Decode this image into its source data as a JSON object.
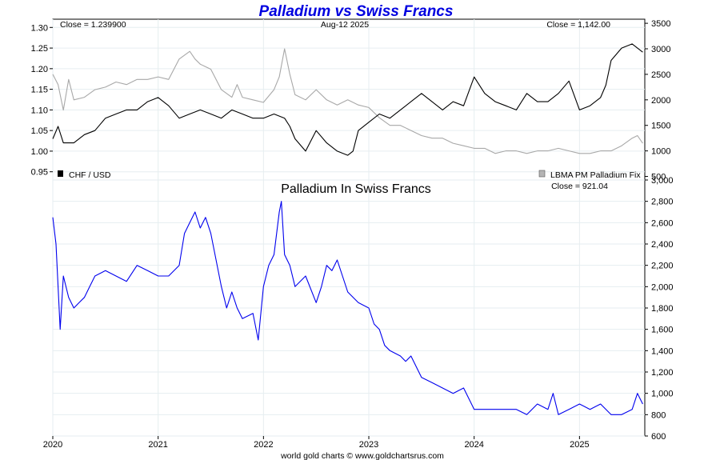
{
  "chart_data": [
    {
      "type": "line",
      "title": "Palladium vs Swiss Francs",
      "date_label": "Aug-12  2025",
      "left_readout": "Close = 1.239900",
      "right_readout": "Close = 1,142.00",
      "left_axis": {
        "ylim": [
          0.93,
          1.32
        ],
        "ticks": [
          "0.95",
          "1.00",
          "1.05",
          "1.10",
          "1.15",
          "1.20",
          "1.25",
          "1.30"
        ]
      },
      "right_axis": {
        "ylim": [
          430,
          3580
        ],
        "ticks": [
          "500",
          "1000",
          "1500",
          "2000",
          "2500",
          "3000",
          "3500"
        ]
      },
      "series": [
        {
          "name": "CHF / USD",
          "axis": "left",
          "color": "#000000",
          "x": [
            2020.0,
            2020.05,
            2020.1,
            2020.2,
            2020.3,
            2020.4,
            2020.5,
            2020.6,
            2020.7,
            2020.8,
            2020.9,
            2021.0,
            2021.1,
            2021.2,
            2021.3,
            2021.4,
            2021.5,
            2021.6,
            2021.7,
            2021.8,
            2021.9,
            2022.0,
            2022.1,
            2022.2,
            2022.25,
            2022.3,
            2022.4,
            2022.5,
            2022.6,
            2022.7,
            2022.8,
            2022.85,
            2022.9,
            2023.0,
            2023.1,
            2023.2,
            2023.3,
            2023.4,
            2023.5,
            2023.6,
            2023.7,
            2023.8,
            2023.9,
            2024.0,
            2024.1,
            2024.2,
            2024.3,
            2024.4,
            2024.5,
            2024.6,
            2024.7,
            2024.8,
            2024.9,
            2025.0,
            2025.1,
            2025.2,
            2025.25,
            2025.3,
            2025.4,
            2025.5,
            2025.6
          ],
          "y": [
            1.03,
            1.06,
            1.02,
            1.02,
            1.04,
            1.05,
            1.08,
            1.09,
            1.1,
            1.1,
            1.12,
            1.13,
            1.11,
            1.08,
            1.09,
            1.1,
            1.09,
            1.08,
            1.1,
            1.09,
            1.08,
            1.08,
            1.09,
            1.08,
            1.06,
            1.03,
            1.0,
            1.05,
            1.02,
            1.0,
            0.99,
            1.0,
            1.05,
            1.07,
            1.09,
            1.08,
            1.1,
            1.12,
            1.14,
            1.12,
            1.1,
            1.12,
            1.11,
            1.18,
            1.14,
            1.12,
            1.11,
            1.1,
            1.14,
            1.12,
            1.12,
            1.14,
            1.17,
            1.1,
            1.11,
            1.13,
            1.16,
            1.22,
            1.25,
            1.26,
            1.24
          ]
        },
        {
          "name": "LBMA PM Palladium Fix",
          "axis": "right",
          "color": "#a8a8a8",
          "x": [
            2020.0,
            2020.05,
            2020.1,
            2020.15,
            2020.2,
            2020.3,
            2020.4,
            2020.5,
            2020.6,
            2020.7,
            2020.8,
            2020.9,
            2021.0,
            2021.1,
            2021.2,
            2021.3,
            2021.35,
            2021.4,
            2021.5,
            2021.6,
            2021.7,
            2021.75,
            2021.8,
            2021.9,
            2022.0,
            2022.1,
            2022.15,
            2022.2,
            2022.25,
            2022.3,
            2022.4,
            2022.5,
            2022.6,
            2022.7,
            2022.8,
            2022.9,
            2023.0,
            2023.1,
            2023.2,
            2023.3,
            2023.4,
            2023.5,
            2023.6,
            2023.7,
            2023.8,
            2023.9,
            2024.0,
            2024.1,
            2024.2,
            2024.3,
            2024.4,
            2024.5,
            2024.6,
            2024.7,
            2024.8,
            2024.9,
            2025.0,
            2025.1,
            2025.2,
            2025.3,
            2025.4,
            2025.5,
            2025.55,
            2025.6
          ],
          "y": [
            2500,
            2300,
            1800,
            2400,
            2000,
            2050,
            2200,
            2250,
            2350,
            2300,
            2400,
            2400,
            2450,
            2400,
            2800,
            2950,
            2800,
            2700,
            2600,
            2200,
            2050,
            2300,
            2050,
            2000,
            1950,
            2200,
            2450,
            3000,
            2500,
            2100,
            2000,
            2200,
            2000,
            1900,
            2000,
            1900,
            1850,
            1650,
            1500,
            1500,
            1400,
            1300,
            1250,
            1250,
            1150,
            1100,
            1050,
            1050,
            950,
            1000,
            1000,
            950,
            1000,
            1000,
            1050,
            1000,
            950,
            950,
            1000,
            1000,
            1100,
            1250,
            1300,
            1150
          ]
        }
      ]
    },
    {
      "type": "line",
      "title": "Palladium In Swiss Francs",
      "right_readout": "Close = 921.04",
      "right_axis": {
        "ylim": [
          600,
          3000
        ],
        "ticks": [
          "3,000",
          "2,800",
          "2,600",
          "2,400",
          "2,200",
          "2,000",
          "1,800",
          "1,600",
          "1,400",
          "1,200",
          "1,000",
          "800",
          "600"
        ]
      },
      "xlim": [
        2020.0,
        2025.62
      ],
      "x_ticks": [
        "2020",
        "2021",
        "2022",
        "2023",
        "2024",
        "2025"
      ],
      "series": [
        {
          "name": "",
          "color": "#0000ee",
          "x": [
            2020.0,
            2020.03,
            2020.07,
            2020.1,
            2020.15,
            2020.2,
            2020.25,
            2020.3,
            2020.35,
            2020.4,
            2020.5,
            2020.6,
            2020.7,
            2020.8,
            2020.9,
            2021.0,
            2021.1,
            2021.2,
            2021.25,
            2021.3,
            2021.35,
            2021.4,
            2021.45,
            2021.5,
            2021.6,
            2021.65,
            2021.7,
            2021.75,
            2021.8,
            2021.9,
            2021.95,
            2022.0,
            2022.05,
            2022.1,
            2022.15,
            2022.17,
            2022.2,
            2022.25,
            2022.3,
            2022.4,
            2022.5,
            2022.55,
            2022.6,
            2022.65,
            2022.7,
            2022.75,
            2022.8,
            2022.9,
            2023.0,
            2023.05,
            2023.1,
            2023.15,
            2023.2,
            2023.3,
            2023.35,
            2023.4,
            2023.5,
            2023.6,
            2023.7,
            2023.8,
            2023.9,
            2024.0,
            2024.1,
            2024.2,
            2024.3,
            2024.4,
            2024.5,
            2024.6,
            2024.7,
            2024.75,
            2024.8,
            2024.9,
            2025.0,
            2025.1,
            2025.2,
            2025.3,
            2025.4,
            2025.5,
            2025.55,
            2025.6
          ],
          "y": [
            2650,
            2400,
            1600,
            2100,
            1900,
            1800,
            1850,
            1900,
            2000,
            2100,
            2150,
            2100,
            2050,
            2200,
            2150,
            2100,
            2100,
            2200,
            2500,
            2600,
            2700,
            2550,
            2650,
            2500,
            2000,
            1800,
            1950,
            1800,
            1700,
            1750,
            1500,
            2000,
            2200,
            2300,
            2700,
            2800,
            2300,
            2200,
            2000,
            2100,
            1850,
            2000,
            2200,
            2150,
            2250,
            2100,
            1950,
            1850,
            1800,
            1650,
            1600,
            1450,
            1400,
            1350,
            1300,
            1350,
            1150,
            1100,
            1050,
            1000,
            1050,
            850,
            850,
            850,
            850,
            850,
            800,
            900,
            850,
            1000,
            800,
            850,
            900,
            850,
            900,
            800,
            800,
            850,
            1000,
            900
          ]
        }
      ]
    }
  ],
  "legend": {
    "left": "CHF / USD",
    "right": "LBMA PM Palladium Fix"
  },
  "footer": "world gold charts © www.goldchartsrus.com"
}
